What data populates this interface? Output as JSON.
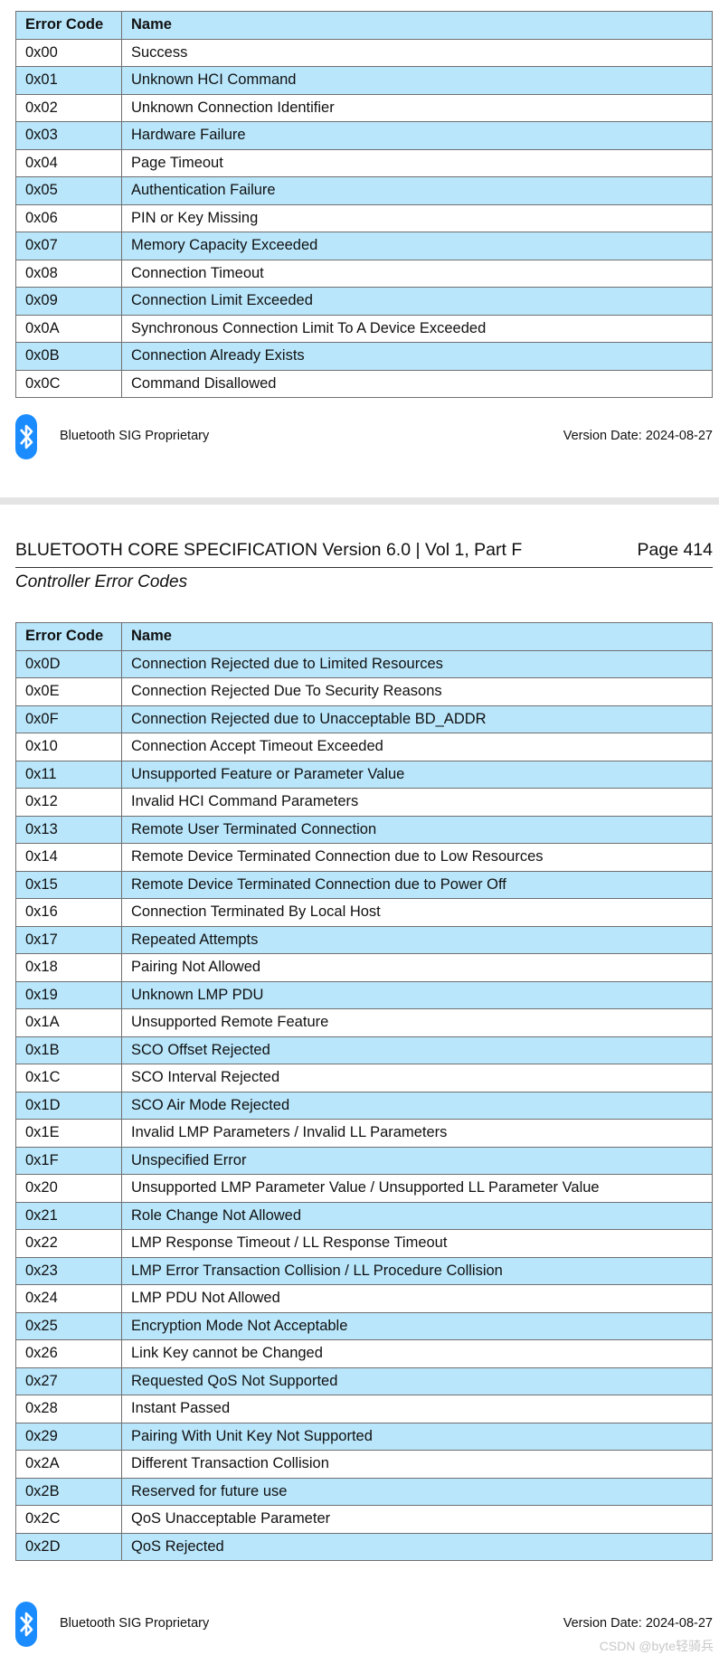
{
  "table_headers": {
    "code": "Error Code",
    "name": "Name"
  },
  "table1": [
    [
      "0x00",
      "Success"
    ],
    [
      "0x01",
      "Unknown HCI Command"
    ],
    [
      "0x02",
      "Unknown Connection Identifier"
    ],
    [
      "0x03",
      "Hardware Failure"
    ],
    [
      "0x04",
      "Page Timeout"
    ],
    [
      "0x05",
      "Authentication Failure"
    ],
    [
      "0x06",
      "PIN or Key Missing"
    ],
    [
      "0x07",
      "Memory Capacity Exceeded"
    ],
    [
      "0x08",
      "Connection Timeout"
    ],
    [
      "0x09",
      "Connection Limit Exceeded"
    ],
    [
      "0x0A",
      "Synchronous Connection Limit To A Device Exceeded"
    ],
    [
      "0x0B",
      "Connection Already Exists"
    ],
    [
      "0x0C",
      "Command Disallowed"
    ]
  ],
  "footer": {
    "left": "Bluetooth SIG Proprietary",
    "right": "Version Date: 2024-08-27",
    "logo": "bluetooth-logo",
    "logo_color": "#1a8cff"
  },
  "page_header": {
    "title": "BLUETOOTH CORE SPECIFICATION Version 6.0 | Vol 1, Part F",
    "page": "Page 414",
    "subtitle": "Controller Error Codes"
  },
  "table2": [
    [
      "0x0D",
      "Connection Rejected due to Limited Resources"
    ],
    [
      "0x0E",
      "Connection Rejected Due To Security Reasons"
    ],
    [
      "0x0F",
      "Connection Rejected due to Unacceptable BD_ADDR"
    ],
    [
      "0x10",
      "Connection Accept Timeout Exceeded"
    ],
    [
      "0x11",
      "Unsupported Feature or Parameter Value"
    ],
    [
      "0x12",
      "Invalid HCI Command Parameters"
    ],
    [
      "0x13",
      "Remote User Terminated Connection"
    ],
    [
      "0x14",
      "Remote Device Terminated Connection due to Low Resources"
    ],
    [
      "0x15",
      "Remote Device Terminated Connection due to Power Off"
    ],
    [
      "0x16",
      "Connection Terminated By Local Host"
    ],
    [
      "0x17",
      "Repeated Attempts"
    ],
    [
      "0x18",
      "Pairing Not Allowed"
    ],
    [
      "0x19",
      "Unknown LMP PDU"
    ],
    [
      "0x1A",
      "Unsupported Remote Feature"
    ],
    [
      "0x1B",
      "SCO Offset Rejected"
    ],
    [
      "0x1C",
      "SCO Interval Rejected"
    ],
    [
      "0x1D",
      "SCO Air Mode Rejected"
    ],
    [
      "0x1E",
      "Invalid LMP Parameters / Invalid LL Parameters"
    ],
    [
      "0x1F",
      "Unspecified Error"
    ],
    [
      "0x20",
      "Unsupported LMP Parameter Value / Unsupported LL Parameter Value"
    ],
    [
      "0x21",
      "Role Change Not Allowed"
    ],
    [
      "0x22",
      "LMP Response Timeout / LL Response Timeout"
    ],
    [
      "0x23",
      "LMP Error Transaction Collision / LL Procedure Collision"
    ],
    [
      "0x24",
      "LMP PDU Not Allowed"
    ],
    [
      "0x25",
      "Encryption Mode Not Acceptable"
    ],
    [
      "0x26",
      "Link Key cannot be Changed"
    ],
    [
      "0x27",
      "Requested QoS Not Supported"
    ],
    [
      "0x28",
      "Instant Passed"
    ],
    [
      "0x29",
      "Pairing With Unit Key Not Supported"
    ],
    [
      "0x2A",
      "Different Transaction Collision"
    ],
    [
      "0x2B",
      "Reserved for future use"
    ],
    [
      "0x2C",
      "QoS Unacceptable Parameter"
    ],
    [
      "0x2D",
      "QoS Rejected"
    ]
  ],
  "watermark": "CSDN @byte轻骑兵",
  "row_highlight_color": "#b9e6fb"
}
